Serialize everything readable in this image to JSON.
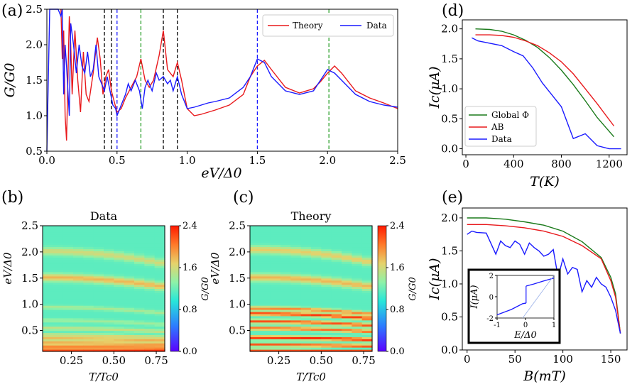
{
  "colors": {
    "theory": "#e8191c",
    "data": "#1a1aff",
    "global": "#1a7a1a",
    "ab": "#e8191c",
    "black_dash": "#000000",
    "green_dash": "#2ca02c",
    "blue_dash": "#1a1aff"
  },
  "panel_labels": [
    "(a)",
    "(b)",
    "(c)",
    "(d)",
    "(e)"
  ],
  "chart_data": [
    {
      "id": "a",
      "type": "line",
      "xlabel": "eV/Δ0",
      "ylabel": "G/G0",
      "xlim": [
        0,
        2.5
      ],
      "ylim": [
        0.5,
        2.5
      ],
      "xticks": [
        "0.0",
        "0.5",
        "1.0",
        "1.5",
        "2.0",
        "2.5"
      ],
      "yticks": [
        "0.5",
        "1.0",
        "1.5",
        "2.0",
        "2.5"
      ],
      "legend": [
        "Theory",
        "Data"
      ],
      "legend_position": "top-right",
      "vlines": {
        "black": [
          0.41,
          0.46,
          0.83,
          0.93
        ],
        "green": [
          0.67,
          2.01
        ],
        "blue": [
          0.5,
          1.5
        ]
      },
      "series": [
        {
          "name": "Theory",
          "x": [
            0.1,
            0.11,
            0.12,
            0.13,
            0.14,
            0.15,
            0.16,
            0.17,
            0.18,
            0.2,
            0.22,
            0.24,
            0.26,
            0.28,
            0.3,
            0.33,
            0.36,
            0.38,
            0.4,
            0.42,
            0.44,
            0.46,
            0.48,
            0.5,
            0.53,
            0.56,
            0.6,
            0.64,
            0.67,
            0.7,
            0.73,
            0.76,
            0.8,
            0.83,
            0.86,
            0.9,
            0.93,
            0.96,
            1.0,
            1.05,
            1.1,
            1.2,
            1.3,
            1.4,
            1.45,
            1.5,
            1.55,
            1.6,
            1.7,
            1.8,
            1.9,
            1.95,
            2.0,
            2.05,
            2.1,
            2.2,
            2.3,
            2.4,
            2.5
          ],
          "y": [
            2.5,
            1.8,
            2.2,
            1.0,
            0.65,
            1.5,
            2.4,
            2.0,
            1.3,
            2.2,
            1.5,
            1.05,
            1.9,
            1.3,
            1.2,
            1.6,
            2.1,
            1.8,
            1.3,
            1.55,
            1.65,
            1.35,
            1.2,
            1.05,
            1.1,
            1.25,
            1.4,
            1.55,
            1.8,
            1.5,
            1.4,
            1.5,
            1.85,
            2.2,
            1.65,
            1.55,
            1.75,
            1.5,
            1.1,
            1.0,
            1.02,
            1.08,
            1.15,
            1.3,
            1.55,
            1.7,
            1.78,
            1.65,
            1.4,
            1.32,
            1.38,
            1.48,
            1.6,
            1.7,
            1.6,
            1.35,
            1.25,
            1.18,
            1.1
          ]
        },
        {
          "name": "Data",
          "x": [
            0.0,
            0.02,
            0.03,
            0.05,
            0.06,
            0.08,
            0.1,
            0.11,
            0.12,
            0.13,
            0.14,
            0.16,
            0.17,
            0.19,
            0.21,
            0.23,
            0.25,
            0.27,
            0.29,
            0.31,
            0.33,
            0.35,
            0.37,
            0.39,
            0.41,
            0.43,
            0.45,
            0.47,
            0.49,
            0.5,
            0.53,
            0.56,
            0.58,
            0.6,
            0.63,
            0.66,
            0.68,
            0.7,
            0.72,
            0.75,
            0.78,
            0.8,
            0.83,
            0.86,
            0.88,
            0.9,
            0.93,
            0.96,
            1.0,
            1.05,
            1.1,
            1.15,
            1.2,
            1.3,
            1.4,
            1.45,
            1.5,
            1.55,
            1.6,
            1.7,
            1.8,
            1.9,
            1.95,
            2.0,
            2.05,
            2.1,
            2.2,
            2.3,
            2.4,
            2.5
          ],
          "y": [
            0.5,
            2.5,
            2.5,
            2.5,
            2.5,
            2.5,
            2.4,
            2.5,
            1.3,
            2.0,
            1.7,
            1.0,
            2.3,
            2.0,
            1.6,
            2.0,
            1.7,
            1.6,
            1.9,
            1.55,
            1.65,
            2.0,
            1.55,
            1.45,
            1.35,
            1.55,
            1.35,
            1.15,
            1.1,
            1.0,
            1.15,
            1.3,
            1.45,
            1.35,
            1.5,
            1.35,
            1.1,
            1.4,
            1.5,
            1.35,
            1.6,
            1.5,
            1.55,
            1.45,
            1.5,
            1.35,
            1.55,
            1.3,
            1.1,
            1.12,
            1.15,
            1.18,
            1.2,
            1.25,
            1.4,
            1.55,
            1.8,
            1.75,
            1.55,
            1.35,
            1.3,
            1.35,
            1.5,
            1.65,
            1.6,
            1.5,
            1.3,
            1.2,
            1.15,
            1.12
          ]
        }
      ]
    },
    {
      "id": "b",
      "type": "heatmap",
      "title": "Data",
      "xlabel": "T/Tc0",
      "ylabel": "eV/Δ0",
      "colorbar_label": "G/G0",
      "xlim": [
        0.08,
        0.8
      ],
      "ylim": [
        0.1,
        2.5
      ],
      "xticks": [
        "0.25",
        "0.50",
        "0.75"
      ],
      "yticks": [
        "0.5",
        "1.0",
        "1.5",
        "2.0",
        "2.5"
      ],
      "colorbar_ticks": [
        "0.0",
        "0.8",
        "1.6",
        "2.4"
      ],
      "clim": [
        0,
        2.4
      ],
      "bands": [
        {
          "e": 0.13,
          "g": 2.3
        },
        {
          "e": 0.2,
          "g": 1.95
        },
        {
          "e": 0.27,
          "g": 1.85
        },
        {
          "e": 0.35,
          "g": 1.8
        },
        {
          "e": 0.42,
          "g": 1.6
        },
        {
          "e": 0.55,
          "g": 1.55
        },
        {
          "e": 0.7,
          "g": 1.4
        },
        {
          "e": 0.95,
          "g": 1.45
        },
        {
          "e": 1.52,
          "g": 1.8
        },
        {
          "e": 2.02,
          "g": 1.6
        }
      ],
      "background": 1.15
    },
    {
      "id": "c",
      "type": "heatmap",
      "title": "Theory",
      "xlabel": "T/Tc0",
      "ylabel": "eV/Δ0",
      "colorbar_label": "G/G0",
      "xlim": [
        0.08,
        0.8
      ],
      "ylim": [
        0.1,
        2.5
      ],
      "xticks": [
        "0.25",
        "0.50",
        "0.75"
      ],
      "yticks": [
        "0.5",
        "1.0",
        "1.5",
        "2.0",
        "2.5"
      ],
      "colorbar_ticks": [
        "0.0",
        "0.8",
        "1.6",
        "2.4"
      ],
      "clim": [
        0,
        2.4
      ],
      "bands": [
        {
          "e": 0.13,
          "g": 2.3
        },
        {
          "e": 0.18,
          "g": 0.7
        },
        {
          "e": 0.23,
          "g": 2.3
        },
        {
          "e": 0.37,
          "g": 2.35
        },
        {
          "e": 0.55,
          "g": 2.1
        },
        {
          "e": 0.68,
          "g": 2.2
        },
        {
          "e": 0.83,
          "g": 2.3
        },
        {
          "e": 0.93,
          "g": 2.0
        },
        {
          "e": 1.52,
          "g": 1.8
        },
        {
          "e": 2.05,
          "g": 1.7
        }
      ],
      "background": 1.15
    },
    {
      "id": "d",
      "type": "line",
      "xlabel": "T(K)",
      "ylabel": "Ic(μA)",
      "xlim": [
        -30,
        1350
      ],
      "ylim": [
        -0.1,
        2.15
      ],
      "xticks": [
        "0",
        "400",
        "800",
        "1200"
      ],
      "yticks": [
        "0.0",
        "0.5",
        "1.0",
        "1.5",
        "2.0"
      ],
      "legend": [
        "Global Φ",
        "AB",
        "Data"
      ],
      "legend_position": "bottom-left",
      "series": [
        {
          "name": "Global Φ",
          "x": [
            80,
            200,
            300,
            400,
            500,
            600,
            700,
            800,
            900,
            1000,
            1100,
            1240
          ],
          "y": [
            2.0,
            1.99,
            1.96,
            1.9,
            1.81,
            1.69,
            1.52,
            1.31,
            1.07,
            0.8,
            0.52,
            0.2
          ]
        },
        {
          "name": "AB",
          "x": [
            80,
            200,
            300,
            400,
            500,
            600,
            700,
            800,
            900,
            1000,
            1100,
            1240
          ],
          "y": [
            1.9,
            1.9,
            1.89,
            1.86,
            1.8,
            1.72,
            1.6,
            1.45,
            1.25,
            1.0,
            0.75,
            0.38
          ]
        },
        {
          "name": "Data",
          "x": [
            50,
            100,
            200,
            300,
            400,
            480,
            560,
            640,
            720,
            800,
            900,
            1000,
            1100,
            1200,
            1300
          ],
          "y": [
            1.85,
            1.8,
            1.76,
            1.72,
            1.62,
            1.55,
            1.35,
            1.1,
            0.9,
            0.7,
            0.17,
            0.25,
            0.05,
            0.0,
            0.0
          ]
        }
      ]
    },
    {
      "id": "e",
      "type": "line",
      "xlabel": "B(mT)",
      "ylabel": "Ic(μA)",
      "xlim": [
        -5,
        167
      ],
      "ylim": [
        0,
        2.15
      ],
      "xticks": [
        "0",
        "50",
        "100",
        "150"
      ],
      "yticks": [
        "0.0",
        "0.5",
        "1.0",
        "1.5",
        "2.0"
      ],
      "series": [
        {
          "name": "Global Φ",
          "x": [
            0,
            20,
            40,
            60,
            80,
            100,
            120,
            140,
            150,
            155,
            160
          ],
          "y": [
            2.0,
            2.0,
            1.98,
            1.94,
            1.89,
            1.8,
            1.64,
            1.4,
            1.1,
            0.85,
            0.25
          ]
        },
        {
          "name": "AB",
          "x": [
            0,
            20,
            40,
            60,
            80,
            100,
            120,
            140,
            150,
            155,
            160
          ],
          "y": [
            1.9,
            1.9,
            1.88,
            1.85,
            1.8,
            1.72,
            1.58,
            1.38,
            1.05,
            0.8,
            0.25
          ]
        },
        {
          "name": "Data",
          "x": [
            0,
            5,
            10,
            20,
            30,
            35,
            40,
            45,
            50,
            55,
            60,
            65,
            70,
            75,
            80,
            85,
            90,
            95,
            100,
            105,
            110,
            115,
            120,
            125,
            130,
            135,
            140,
            145,
            150,
            155,
            160
          ],
          "y": [
            1.75,
            1.8,
            1.78,
            1.77,
            1.45,
            1.65,
            1.58,
            1.55,
            1.65,
            1.6,
            1.45,
            1.62,
            1.55,
            1.5,
            1.42,
            1.45,
            1.52,
            1.1,
            1.38,
            1.15,
            1.25,
            1.22,
            0.88,
            1.05,
            0.95,
            1.1,
            1.0,
            0.95,
            0.8,
            0.6,
            0.25
          ]
        }
      ],
      "inset": {
        "xlabel": "E/Δ0",
        "ylabel": "I(μA)",
        "xlim": [
          -1,
          1
        ],
        "ylim": [
          -2,
          2
        ],
        "xticks": [
          "-1",
          "0",
          "1"
        ],
        "yticks": [
          "-2",
          "0",
          "2"
        ]
      }
    }
  ]
}
